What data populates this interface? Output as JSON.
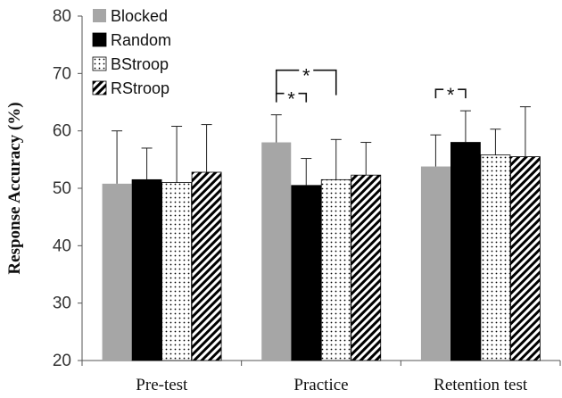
{
  "chart_data": {
    "type": "bar",
    "title": "",
    "xlabel": "",
    "ylabel": "Response Accuracy (%)",
    "ylim": [
      20,
      80
    ],
    "yticks": [
      20,
      30,
      40,
      50,
      60,
      70,
      80
    ],
    "grid": false,
    "legend_position": "top-left",
    "categories": [
      "Pre-test",
      "Practice",
      "Retention test"
    ],
    "series": [
      {
        "name": "Blocked",
        "pattern": "solid-gray",
        "color": "#a6a6a6",
        "values": [
          50.8,
          58.0,
          53.8
        ],
        "errors": [
          9.2,
          4.8,
          5.5
        ]
      },
      {
        "name": "Random",
        "pattern": "solid-black",
        "color": "#000000",
        "values": [
          51.5,
          50.5,
          58.0
        ],
        "errors": [
          5.5,
          4.7,
          5.5
        ]
      },
      {
        "name": "BStroop",
        "pattern": "dots",
        "color": "#ffffff",
        "values": [
          51.0,
          51.5,
          55.8
        ],
        "errors": [
          9.8,
          7.0,
          4.5
        ]
      },
      {
        "name": "RStroop",
        "pattern": "diagonal-hatch",
        "color": "#000000",
        "values": [
          52.8,
          52.3,
          55.5
        ],
        "errors": [
          8.3,
          5.7,
          8.7
        ]
      }
    ],
    "annotations": [
      {
        "text": "*",
        "category": "Practice",
        "from_series": "Blocked",
        "to_series": "BStroop",
        "type": "bracket"
      },
      {
        "text": "*",
        "category": "Practice",
        "from_series": "Blocked",
        "to_series": "Random",
        "type": "bracket"
      },
      {
        "text": "*",
        "category": "Retention test",
        "from_series": "Blocked",
        "to_series": "Random",
        "type": "bracket"
      }
    ]
  }
}
